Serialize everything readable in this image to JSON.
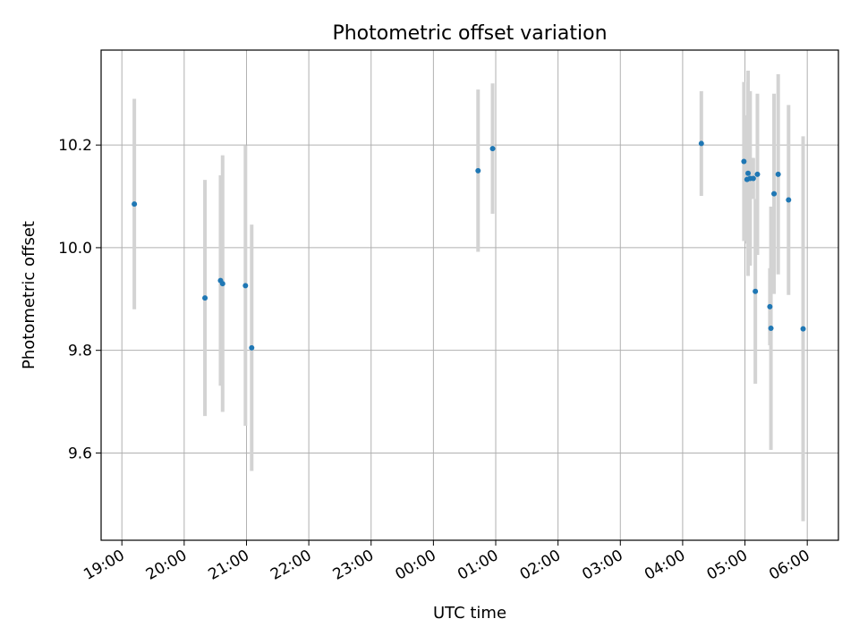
{
  "chart_data": {
    "type": "scatter",
    "title": "Photometric offset variation",
    "xlabel": "UTC time",
    "ylabel": "Photometric offset",
    "x_ticks": [
      "19:00",
      "20:00",
      "21:00",
      "22:00",
      "23:00",
      "00:00",
      "01:00",
      "02:00",
      "03:00",
      "04:00",
      "05:00",
      "06:00"
    ],
    "y_ticks": [
      "9.6",
      "9.8",
      "10.0",
      "10.2"
    ],
    "xlim": [
      "18:40",
      "06:30"
    ],
    "ylim": [
      9.43,
      10.385
    ],
    "grid": true,
    "point_color": "#1f77b4",
    "errorbar_color": "#d3d3d3",
    "points": [
      {
        "x": "19:12",
        "y": 10.085,
        "err": 0.205
      },
      {
        "x": "20:20",
        "y": 9.902,
        "err": 0.23
      },
      {
        "x": "20:35",
        "y": 9.936,
        "err": 0.205
      },
      {
        "x": "20:37",
        "y": 9.93,
        "err": 0.25
      },
      {
        "x": "20:59",
        "y": 9.926,
        "err": 0.273
      },
      {
        "x": "21:05",
        "y": 9.805,
        "err": 0.24
      },
      {
        "x": "00:43",
        "y": 10.15,
        "err": 0.158
      },
      {
        "x": "00:57",
        "y": 10.193,
        "err": 0.127
      },
      {
        "x": "04:18",
        "y": 10.203,
        "err": 0.102
      },
      {
        "x": "04:59",
        "y": 10.168,
        "err": 0.155
      },
      {
        "x": "05:02",
        "y": 10.133,
        "err": 0.125
      },
      {
        "x": "05:03",
        "y": 10.145,
        "err": 0.2
      },
      {
        "x": "05:05",
        "y": 10.135,
        "err": 0.17
      },
      {
        "x": "05:08",
        "y": 10.135,
        "err": 0.04
      },
      {
        "x": "05:10",
        "y": 9.915,
        "err": 0.18
      },
      {
        "x": "05:12",
        "y": 10.143,
        "err": 0.157
      },
      {
        "x": "05:24",
        "y": 9.885,
        "err": 0.075
      },
      {
        "x": "05:25",
        "y": 9.843,
        "err": 0.237
      },
      {
        "x": "05:28",
        "y": 10.105,
        "err": 0.195
      },
      {
        "x": "05:32",
        "y": 10.143,
        "err": 0.195
      },
      {
        "x": "05:42",
        "y": 10.093,
        "err": 0.185
      },
      {
        "x": "05:56",
        "y": 9.842,
        "err": 0.375
      }
    ]
  }
}
